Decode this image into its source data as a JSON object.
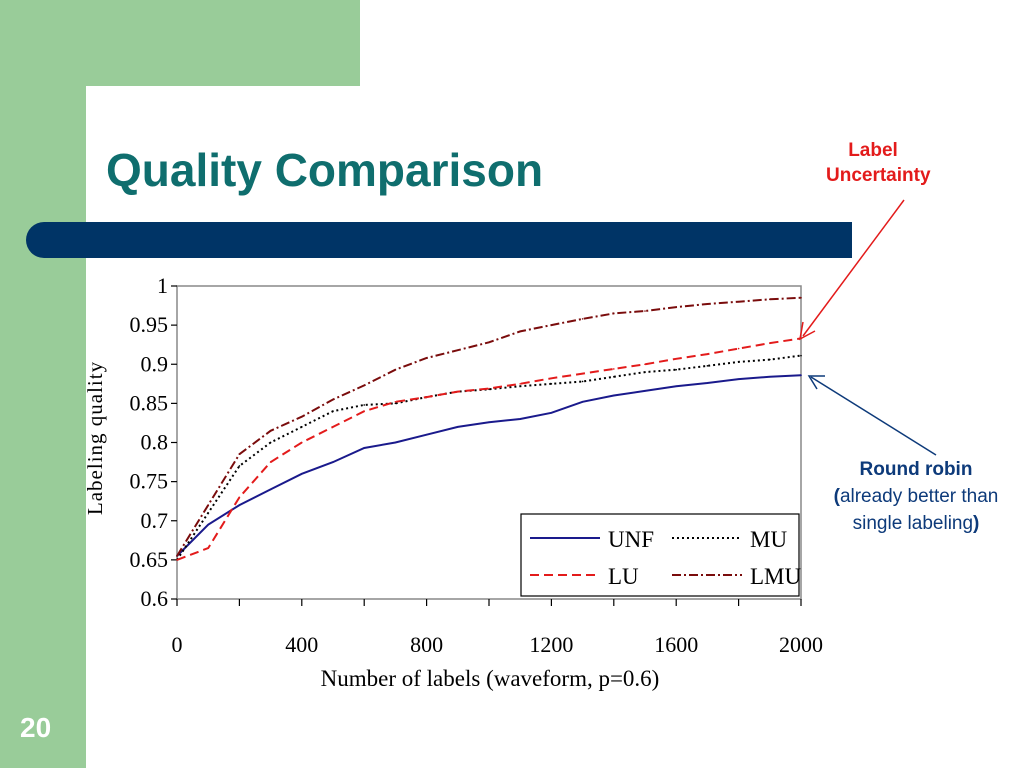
{
  "slide": {
    "title": "Quality Comparison",
    "page_number": "20",
    "annotation_label_uncertainty": "Label Uncertainty",
    "annotation_round_robin_bold": "Round robin",
    "annotation_round_robin_open": "(",
    "annotation_round_robin_text": "already better than single labeling",
    "annotation_round_robin_close": ")",
    "colors": {
      "title": "#0f6e6e",
      "bar": "#003466",
      "side_panel": "#99cc99",
      "annotation_red": "#e31b1b",
      "annotation_blue": "#0d3a7a"
    }
  },
  "chart_data": {
    "type": "line",
    "title": "",
    "xlabel": "Number of labels (waveform, p=0.6)",
    "ylabel": "Labeling quality",
    "xlim": [
      0,
      2000
    ],
    "ylim": [
      0.6,
      1
    ],
    "xticks": [
      0,
      400,
      800,
      1200,
      1600,
      2000
    ],
    "yticks": [
      0.6,
      0.65,
      0.7,
      0.75,
      0.8,
      0.85,
      0.9,
      0.95,
      1
    ],
    "x": [
      0,
      100,
      200,
      300,
      400,
      500,
      600,
      700,
      800,
      900,
      1000,
      1100,
      1200,
      1300,
      1400,
      1500,
      1600,
      1700,
      1800,
      1900,
      2000
    ],
    "legend_position": "bottom-right",
    "series": [
      {
        "name": "UNF",
        "color": "#1a1a8c",
        "dash": "",
        "values": [
          0.655,
          0.695,
          0.72,
          0.74,
          0.76,
          0.775,
          0.793,
          0.8,
          0.81,
          0.82,
          0.826,
          0.83,
          0.838,
          0.852,
          0.86,
          0.866,
          0.872,
          0.876,
          0.881,
          0.884,
          0.886
        ]
      },
      {
        "name": "MU",
        "color": "#000000",
        "dash": "2,3",
        "values": [
          0.65,
          0.71,
          0.77,
          0.8,
          0.82,
          0.84,
          0.848,
          0.85,
          0.858,
          0.865,
          0.868,
          0.872,
          0.875,
          0.878,
          0.884,
          0.89,
          0.893,
          0.898,
          0.903,
          0.906,
          0.911
        ]
      },
      {
        "name": "LU",
        "color": "#e31b1b",
        "dash": "9,5",
        "values": [
          0.65,
          0.665,
          0.73,
          0.775,
          0.8,
          0.82,
          0.84,
          0.852,
          0.858,
          0.865,
          0.869,
          0.875,
          0.882,
          0.888,
          0.894,
          0.9,
          0.907,
          0.913,
          0.92,
          0.927,
          0.933
        ]
      },
      {
        "name": "LMU",
        "color": "#7a0c0c",
        "dash": "9,3,2,3",
        "values": [
          0.655,
          0.72,
          0.785,
          0.815,
          0.833,
          0.855,
          0.873,
          0.893,
          0.908,
          0.918,
          0.928,
          0.942,
          0.95,
          0.958,
          0.965,
          0.968,
          0.973,
          0.977,
          0.98,
          0.983,
          0.985
        ]
      }
    ]
  }
}
